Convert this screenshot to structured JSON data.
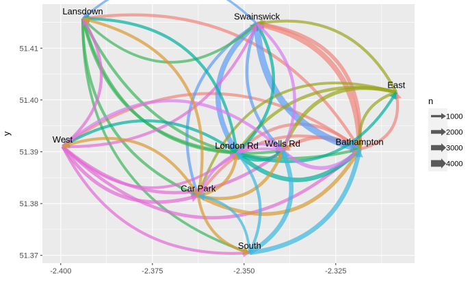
{
  "chart_data": {
    "type": "network-flow",
    "xlabel": "",
    "ylabel": "y",
    "xlim": [
      -2.405,
      -2.3035
    ],
    "ylim": [
      51.3685,
      51.4185
    ],
    "x_ticks": [
      -2.4,
      -2.375,
      -2.35,
      -2.325
    ],
    "x_tick_labels": [
      "-2.400",
      "-2.375",
      "-2.350",
      "-2.325"
    ],
    "y_ticks": [
      51.37,
      51.38,
      51.39,
      51.4,
      51.41
    ],
    "y_tick_labels": [
      "51.37",
      "51.38",
      "51.39",
      "51.40",
      "51.41"
    ],
    "grid": true,
    "legend_placement": "right",
    "nodes": [
      {
        "name": "Lansdown",
        "x": -2.394,
        "y": 51.4157,
        "color": "#3DB55C"
      },
      {
        "name": "Swainswick",
        "x": -2.3465,
        "y": 51.4147,
        "color": "#5C9CF5"
      },
      {
        "name": "East",
        "x": -2.3085,
        "y": 51.4015,
        "color": "#9AA520"
      },
      {
        "name": "West",
        "x": -2.3995,
        "y": 51.391,
        "color": "#E36BD5"
      },
      {
        "name": "London Rd",
        "x": -2.352,
        "y": 51.3898,
        "color": "#00B09C"
      },
      {
        "name": "Wells Rd",
        "x": -2.3395,
        "y": 51.3902,
        "color": "#D97AF0"
      },
      {
        "name": "Bathampton",
        "x": -2.3185,
        "y": 51.3905,
        "color": "#F0847C"
      },
      {
        "name": "Car Park",
        "x": -2.3625,
        "y": 51.3815,
        "color": "#D99A30"
      },
      {
        "name": "South",
        "x": -2.3485,
        "y": 51.3705,
        "color": "#3AB8E0"
      }
    ],
    "flows": [
      {
        "from": "Bathampton",
        "to": "Lansdown",
        "n": 1500
      },
      {
        "from": "Bathampton",
        "to": "Swainswick",
        "n": 3000
      },
      {
        "from": "Bathampton",
        "to": "Swainswick",
        "n": 2000
      },
      {
        "from": "Bathampton",
        "to": "West",
        "n": 1400
      },
      {
        "from": "Bathampton",
        "to": "London Rd",
        "n": 1500
      },
      {
        "from": "Bathampton",
        "to": "Wells Rd",
        "n": 1800
      },
      {
        "from": "Bathampton",
        "to": "Car Park",
        "n": 1400
      },
      {
        "from": "Bathampton",
        "to": "East",
        "n": 1400
      },
      {
        "from": "Swainswick",
        "to": "Bathampton",
        "n": 4000
      },
      {
        "from": "Swainswick",
        "to": "London Rd",
        "n": 3000
      },
      {
        "from": "Swainswick",
        "to": "Wells Rd",
        "n": 1500
      },
      {
        "from": "Swainswick",
        "to": "Car Park",
        "n": 1400
      },
      {
        "from": "Swainswick",
        "to": "Lansdown",
        "n": 1000
      },
      {
        "from": "Lansdown",
        "to": "London Rd",
        "n": 1400
      },
      {
        "from": "Lansdown",
        "to": "Wells Rd",
        "n": 1400
      },
      {
        "from": "Lansdown",
        "to": "Car Park",
        "n": 1400
      },
      {
        "from": "Lansdown",
        "to": "Bathampton",
        "n": 1400
      },
      {
        "from": "Lansdown",
        "to": "Swainswick",
        "n": 1200
      },
      {
        "from": "Lansdown",
        "to": "South",
        "n": 1200
      },
      {
        "from": "East",
        "to": "Wells Rd",
        "n": 2000
      },
      {
        "from": "East",
        "to": "London Rd",
        "n": 1600
      },
      {
        "from": "East",
        "to": "Bathampton",
        "n": 1400
      },
      {
        "from": "East",
        "to": "Car Park",
        "n": 1200
      },
      {
        "from": "East",
        "to": "Swainswick",
        "n": 1400
      },
      {
        "from": "West",
        "to": "Lansdown",
        "n": 1400
      },
      {
        "from": "West",
        "to": "Swainswick",
        "n": 1400
      },
      {
        "from": "West",
        "to": "Wells Rd",
        "n": 1600
      },
      {
        "from": "West",
        "to": "Bathampton",
        "n": 1600
      },
      {
        "from": "West",
        "to": "Car Park",
        "n": 1800
      },
      {
        "from": "West",
        "to": "London Rd",
        "n": 1200
      },
      {
        "from": "West",
        "to": "South",
        "n": 1400
      },
      {
        "from": "London Rd",
        "to": "Swainswick",
        "n": 1500
      },
      {
        "from": "London Rd",
        "to": "Bathampton",
        "n": 2500
      },
      {
        "from": "London Rd",
        "to": "Wells Rd",
        "n": 1500
      },
      {
        "from": "London Rd",
        "to": "Lansdown",
        "n": 1400
      },
      {
        "from": "London Rd",
        "to": "West",
        "n": 1400
      },
      {
        "from": "London Rd",
        "to": "East",
        "n": 1400
      },
      {
        "from": "Wells Rd",
        "to": "Bathampton",
        "n": 2000
      },
      {
        "from": "Wells Rd",
        "to": "Swainswick",
        "n": 1500
      },
      {
        "from": "Wells Rd",
        "to": "West",
        "n": 1500
      },
      {
        "from": "Wells Rd",
        "to": "London Rd",
        "n": 1200
      },
      {
        "from": "Wells Rd",
        "to": "Car Park",
        "n": 1200
      },
      {
        "from": "Car Park",
        "to": "Bathampton",
        "n": 2000
      },
      {
        "from": "Car Park",
        "to": "London Rd",
        "n": 1500
      },
      {
        "from": "Car Park",
        "to": "Wells Rd",
        "n": 1600
      },
      {
        "from": "Car Park",
        "to": "South",
        "n": 1400
      },
      {
        "from": "Car Park",
        "to": "West",
        "n": 1400
      },
      {
        "from": "Car Park",
        "to": "Lansdown",
        "n": 1400
      },
      {
        "from": "South",
        "to": "Bathampton",
        "n": 2500
      },
      {
        "from": "South",
        "to": "Wells Rd",
        "n": 2500
      },
      {
        "from": "South",
        "to": "London Rd",
        "n": 1400
      },
      {
        "from": "South",
        "to": "Car Park",
        "n": 1200
      }
    ],
    "legend": {
      "title": "n",
      "entries": [
        {
          "label": "1000",
          "value": 1000
        },
        {
          "label": "2000",
          "value": 2000
        },
        {
          "label": "3000",
          "value": 3000
        },
        {
          "label": "4000",
          "value": 4000
        }
      ]
    },
    "colors": {
      "panel_bg": "#EBEBEB",
      "grid_major": "#FFFFFF",
      "edge_dark": "#595959"
    }
  }
}
